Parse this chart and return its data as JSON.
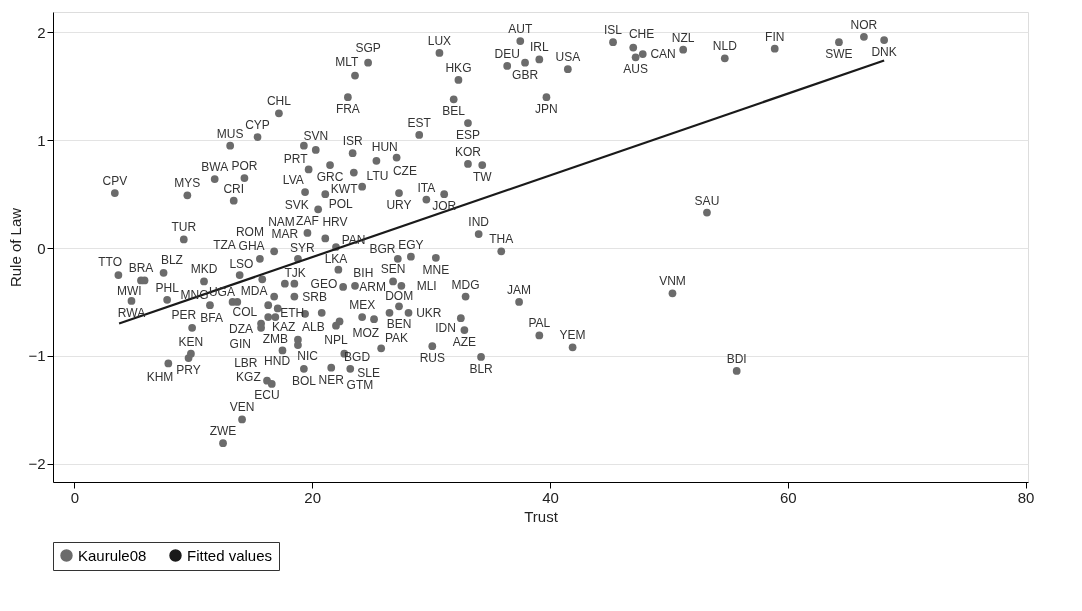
{
  "chart_data": {
    "type": "scatter",
    "xlabel": "Trust",
    "ylabel": "Rule of Law",
    "xlim": [
      -1.8,
      80.2
    ],
    "ylim": [
      -2.17,
      2.19
    ],
    "xticks": [
      0,
      20,
      40,
      60,
      80
    ],
    "yticks": [
      -2,
      -1,
      0,
      1,
      2
    ],
    "grid": "y",
    "legend": "bottom",
    "series": [
      {
        "name": "Kaurule08",
        "color": "#6b6b6b",
        "marker": "circle",
        "x": [
          3.4,
          9.5,
          11.8,
          14.3,
          13.4,
          13.1,
          15.4,
          17.2,
          9.2,
          19.3,
          20.3,
          19.7,
          21.5,
          23.4,
          23.5,
          25.4,
          27.1,
          24.2,
          19.4,
          21.1,
          27.3,
          29.6,
          31.1,
          29.0,
          33.1,
          33.1,
          34.3,
          31.9,
          39.7,
          23.0,
          23.6,
          24.7,
          30.7,
          32.3,
          37.5,
          36.4,
          37.9,
          39.1,
          41.5,
          45.3,
          47.0,
          47.2,
          47.8,
          51.2,
          54.7,
          58.9,
          64.3,
          66.4,
          68.1,
          53.2,
          50.3,
          55.7,
          37.4,
          32.9,
          32.5,
          32.8,
          39.1,
          41.9,
          34.2,
          30.1,
          25.8,
          34.0,
          35.9,
          30.4,
          28.3,
          27.2,
          26.8,
          27.5,
          27.3,
          24.2,
          25.2,
          26.5,
          28.1,
          22.6,
          23.6,
          22.2,
          19.6,
          21.1,
          22.0,
          20.5,
          15.6,
          16.8,
          18.8,
          20.8,
          19.4,
          22.0,
          22.3,
          22.7,
          23.2,
          21.6,
          19.3,
          3.7,
          5.6,
          5.9,
          4.8,
          7.5,
          7.8,
          10.9,
          11.4,
          9.9,
          9.8,
          9.6,
          7.9,
          16.2,
          16.6,
          14.1,
          12.5,
          13.9,
          15.8,
          17.7,
          18.5,
          13.3,
          13.7,
          16.8,
          18.5,
          16.3,
          17.1,
          16.3,
          16.9,
          15.7,
          15.7,
          17.5,
          18.8,
          18.8
        ],
        "values": [
          0.51,
          0.49,
          0.64,
          0.65,
          0.44,
          0.95,
          1.03,
          1.25,
          0.08,
          0.95,
          0.91,
          0.73,
          0.77,
          0.88,
          0.7,
          0.81,
          0.84,
          0.57,
          0.52,
          0.5,
          0.51,
          0.45,
          0.5,
          1.05,
          1.16,
          0.78,
          0.77,
          1.38,
          1.4,
          1.4,
          1.6,
          1.72,
          1.81,
          1.56,
          1.92,
          1.69,
          1.72,
          1.75,
          1.66,
          1.91,
          1.86,
          1.77,
          1.8,
          1.84,
          1.76,
          1.85,
          1.91,
          1.96,
          1.93,
          0.33,
          -0.42,
          -1.14,
          -0.5,
          -0.45,
          -0.65,
          -0.76,
          -0.81,
          -0.92,
          -1.01,
          -0.91,
          -0.93,
          0.13,
          -0.03,
          -0.09,
          -0.08,
          -0.1,
          -0.31,
          -0.35,
          -0.54,
          -0.64,
          -0.66,
          -0.6,
          -0.6,
          -0.36,
          -0.35,
          -0.2,
          0.14,
          0.09,
          0.01,
          0.36,
          -0.1,
          -0.03,
          -0.1,
          -0.6,
          -0.61,
          -0.72,
          -0.68,
          -0.98,
          -1.12,
          -1.11,
          -1.12,
          -0.25,
          -0.3,
          -0.3,
          -0.49,
          -0.23,
          -0.48,
          -0.31,
          -0.53,
          -0.74,
          -0.98,
          -1.02,
          -1.07,
          -1.23,
          -1.26,
          -1.59,
          -1.81,
          -0.25,
          -0.29,
          -0.33,
          -0.33,
          -0.5,
          -0.5,
          -0.45,
          -0.45,
          -0.53,
          -0.56,
          -0.64,
          -0.64,
          -0.7,
          -0.74,
          -0.95,
          -0.85,
          -0.9
        ]
      },
      {
        "name": "Fitted values",
        "color": "#1a1a1a",
        "type": "line",
        "line_style": "solid",
        "marker": "none",
        "x": [
          3.76,
          68.1
        ],
        "values": [
          -0.7,
          1.74
        ]
      }
    ],
    "annotations": [
      {
        "text": "CPV",
        "x": 3.4,
        "y": 0.51
      },
      {
        "text": "MYS",
        "x": 9.5,
        "y": 0.49
      },
      {
        "text": "BWA",
        "x": 11.8,
        "y": 0.64
      },
      {
        "text": "POR",
        "x": 14.3,
        "y": 0.65
      },
      {
        "text": "CRI",
        "x": 13.4,
        "y": 0.44
      },
      {
        "text": "MUS",
        "x": 13.1,
        "y": 0.95
      },
      {
        "text": "CYP",
        "x": 15.4,
        "y": 1.03
      },
      {
        "text": "CHL",
        "x": 17.2,
        "y": 1.25
      },
      {
        "text": "TUR",
        "x": 9.2,
        "y": 0.08
      },
      {
        "text": "PRT",
        "x": 19.3,
        "y": 0.95
      },
      {
        "text": "SVN",
        "x": 20.3,
        "y": 0.91
      },
      {
        "text": "LVA",
        "x": 19.7,
        "y": 0.73
      },
      {
        "text": "GRC",
        "x": 21.5,
        "y": 0.77
      },
      {
        "text": "ISR",
        "x": 23.4,
        "y": 0.88
      },
      {
        "text": "KWT",
        "x": 23.5,
        "y": 0.7
      },
      {
        "text": "HUN",
        "x": 25.4,
        "y": 0.81
      },
      {
        "text": "CZE",
        "x": 27.1,
        "y": 0.84
      },
      {
        "text": "LTU",
        "x": 24.2,
        "y": 0.57
      },
      {
        "text": "SVK",
        "x": 19.4,
        "y": 0.52
      },
      {
        "text": "POL",
        "x": 21.1,
        "y": 0.5
      },
      {
        "text": "URY",
        "x": 27.3,
        "y": 0.51
      },
      {
        "text": "ITA",
        "x": 29.6,
        "y": 0.45
      },
      {
        "text": "JOR",
        "x": 31.1,
        "y": 0.5
      },
      {
        "text": "EST",
        "x": 29.0,
        "y": 1.05
      },
      {
        "text": "ESP",
        "x": 33.1,
        "y": 1.16
      },
      {
        "text": "KOR",
        "x": 33.1,
        "y": 0.78
      },
      {
        "text": "TW",
        "x": 34.3,
        "y": 0.77
      },
      {
        "text": "BEL",
        "x": 31.9,
        "y": 1.38
      },
      {
        "text": "JPN",
        "x": 39.7,
        "y": 1.4
      },
      {
        "text": "FRA",
        "x": 23.0,
        "y": 1.4
      },
      {
        "text": "MLT",
        "x": 23.6,
        "y": 1.6
      },
      {
        "text": "SGP",
        "x": 24.7,
        "y": 1.72
      },
      {
        "text": "LUX",
        "x": 30.7,
        "y": 1.81
      },
      {
        "text": "HKG",
        "x": 32.3,
        "y": 1.56
      },
      {
        "text": "AUT",
        "x": 37.5,
        "y": 1.92
      },
      {
        "text": "DEU",
        "x": 36.4,
        "y": 1.69
      },
      {
        "text": "GBR",
        "x": 37.9,
        "y": 1.72
      },
      {
        "text": "IRL",
        "x": 39.1,
        "y": 1.75
      },
      {
        "text": "USA",
        "x": 41.5,
        "y": 1.66
      },
      {
        "text": "ISL",
        "x": 45.3,
        "y": 1.91
      },
      {
        "text": "CHE",
        "x": 47.0,
        "y": 1.86
      },
      {
        "text": "AUS",
        "x": 47.2,
        "y": 1.77
      },
      {
        "text": "CAN",
        "x": 47.8,
        "y": 1.8
      },
      {
        "text": "NZL",
        "x": 51.2,
        "y": 1.84
      },
      {
        "text": "NLD",
        "x": 54.7,
        "y": 1.76
      },
      {
        "text": "FIN",
        "x": 58.9,
        "y": 1.85
      },
      {
        "text": "SWE",
        "x": 64.3,
        "y": 1.91
      },
      {
        "text": "NOR",
        "x": 66.4,
        "y": 1.96
      },
      {
        "text": "DNK",
        "x": 68.1,
        "y": 1.93
      },
      {
        "text": "SAU",
        "x": 53.2,
        "y": 0.33
      },
      {
        "text": "VNM",
        "x": 50.3,
        "y": -0.42
      },
      {
        "text": "BDI",
        "x": 55.7,
        "y": -1.14
      },
      {
        "text": "JAM",
        "x": 37.4,
        "y": -0.5
      },
      {
        "text": "MDG",
        "x": 32.9,
        "y": -0.45
      },
      {
        "text": "IDN",
        "x": 32.5,
        "y": -0.65
      },
      {
        "text": "AZE",
        "x": 32.8,
        "y": -0.76
      },
      {
        "text": "PAL",
        "x": 39.1,
        "y": -0.81
      },
      {
        "text": "YEM",
        "x": 41.9,
        "y": -0.92
      },
      {
        "text": "BLR",
        "x": 34.2,
        "y": -1.01
      },
      {
        "text": "RUS",
        "x": 30.1,
        "y": -0.91
      },
      {
        "text": "PAK",
        "x": 25.8,
        "y": -0.93
      },
      {
        "text": "IND",
        "x": 34.0,
        "y": 0.13
      },
      {
        "text": "THA",
        "x": 35.9,
        "y": -0.03
      },
      {
        "text": "MNE",
        "x": 30.4,
        "y": -0.09
      },
      {
        "text": "EGY",
        "x": 28.3,
        "y": -0.08
      },
      {
        "text": "BGR",
        "x": 27.2,
        "y": -0.1
      },
      {
        "text": "SEN",
        "x": 26.8,
        "y": -0.31
      },
      {
        "text": "MLI",
        "x": 27.5,
        "y": -0.35
      },
      {
        "text": "BEN",
        "x": 27.3,
        "y": -0.54
      },
      {
        "text": "MEX",
        "x": 24.2,
        "y": -0.64
      },
      {
        "text": "MOZ",
        "x": 25.2,
        "y": -0.66
      },
      {
        "text": "DOM",
        "x": 26.5,
        "y": -0.6
      },
      {
        "text": "UKR",
        "x": 28.1,
        "y": -0.6
      },
      {
        "text": "ARM",
        "x": 22.6,
        "y": -0.36
      },
      {
        "text": "BIH",
        "x": 23.6,
        "y": -0.35
      },
      {
        "text": "PAN",
        "x": 22.2,
        "y": -0.2
      },
      {
        "text": "ZAF",
        "x": 19.6,
        "y": 0.14
      },
      {
        "text": "HRV",
        "x": 21.1,
        "y": 0.09
      },
      {
        "text": "LKA",
        "x": 22.0,
        "y": 0.01
      },
      {
        "text": "NAM",
        "x": 20.5,
        "y": 0.36
      },
      {
        "text": "GHA",
        "x": 15.6,
        "y": -0.1
      },
      {
        "text": "ROM",
        "x": 16.8,
        "y": -0.03
      },
      {
        "text": "MAR",
        "x": 18.8,
        "y": -0.1
      },
      {
        "text": "ETH",
        "x": 20.8,
        "y": -0.6
      },
      {
        "text": "ALB",
        "x": 19.4,
        "y": -0.61
      },
      {
        "text": "NPL",
        "x": 22.0,
        "y": -0.72
      },
      {
        "text": "BGD",
        "x": 22.3,
        "y": -0.68
      },
      {
        "text": "SLE",
        "x": 22.7,
        "y": -0.98
      },
      {
        "text": "GTM",
        "x": 23.2,
        "y": -1.12
      },
      {
        "text": "NER",
        "x": 21.6,
        "y": -1.11
      },
      {
        "text": "BOL",
        "x": 19.3,
        "y": -1.12
      },
      {
        "text": "TTO",
        "x": 3.7,
        "y": -0.25
      },
      {
        "text": "BRA",
        "x": 5.6,
        "y": -0.3
      },
      {
        "text": "MWI",
        "x": 5.9,
        "y": -0.3
      },
      {
        "text": "RWA",
        "x": 4.8,
        "y": -0.49
      },
      {
        "text": "BLZ",
        "x": 7.5,
        "y": -0.23
      },
      {
        "text": "PHL",
        "x": 7.8,
        "y": -0.48
      },
      {
        "text": "MKD",
        "x": 10.9,
        "y": -0.31
      },
      {
        "text": "MNG",
        "x": 11.4,
        "y": -0.53
      },
      {
        "text": "PER",
        "x": 9.9,
        "y": -0.74
      },
      {
        "text": "KEN",
        "x": 9.8,
        "y": -0.98
      },
      {
        "text": "PRY",
        "x": 9.6,
        "y": -1.02
      },
      {
        "text": "KHM",
        "x": 7.9,
        "y": -1.07
      },
      {
        "text": "ECU",
        "x": 16.2,
        "y": -1.23
      },
      {
        "text": "KGZ",
        "x": 16.6,
        "y": -1.26
      },
      {
        "text": "VEN",
        "x": 14.1,
        "y": -1.59
      },
      {
        "text": "ZWE",
        "x": 12.5,
        "y": -1.81
      },
      {
        "text": "TZA",
        "x": 13.9,
        "y": -0.25
      },
      {
        "text": "LSO",
        "x": 15.8,
        "y": -0.29
      },
      {
        "text": "SYR",
        "x": 17.7,
        "y": -0.33
      },
      {
        "text": "GEO",
        "x": 18.5,
        "y": -0.33
      },
      {
        "text": "BFA",
        "x": 13.3,
        "y": -0.5
      },
      {
        "text": "UGA",
        "x": 13.7,
        "y": -0.5
      },
      {
        "text": "MDA",
        "x": 16.8,
        "y": -0.45
      },
      {
        "text": "SRB",
        "x": 18.5,
        "y": -0.45
      },
      {
        "text": "COL",
        "x": 16.3,
        "y": -0.53
      },
      {
        "text": "TJK",
        "x": 17.1,
        "y": -0.56
      },
      {
        "text": "KAZ",
        "x": 16.3,
        "y": -0.64
      },
      {
        "text": "ZMB",
        "x": 16.9,
        "y": -0.64
      },
      {
        "text": "DZA",
        "x": 15.7,
        "y": -0.7
      },
      {
        "text": "GIN",
        "x": 15.7,
        "y": -0.74
      },
      {
        "text": "LBR",
        "x": 17.5,
        "y": -0.95
      },
      {
        "text": "NIC",
        "x": 18.8,
        "y": -0.85
      },
      {
        "text": "HND",
        "x": 18.8,
        "y": -0.9
      }
    ]
  }
}
